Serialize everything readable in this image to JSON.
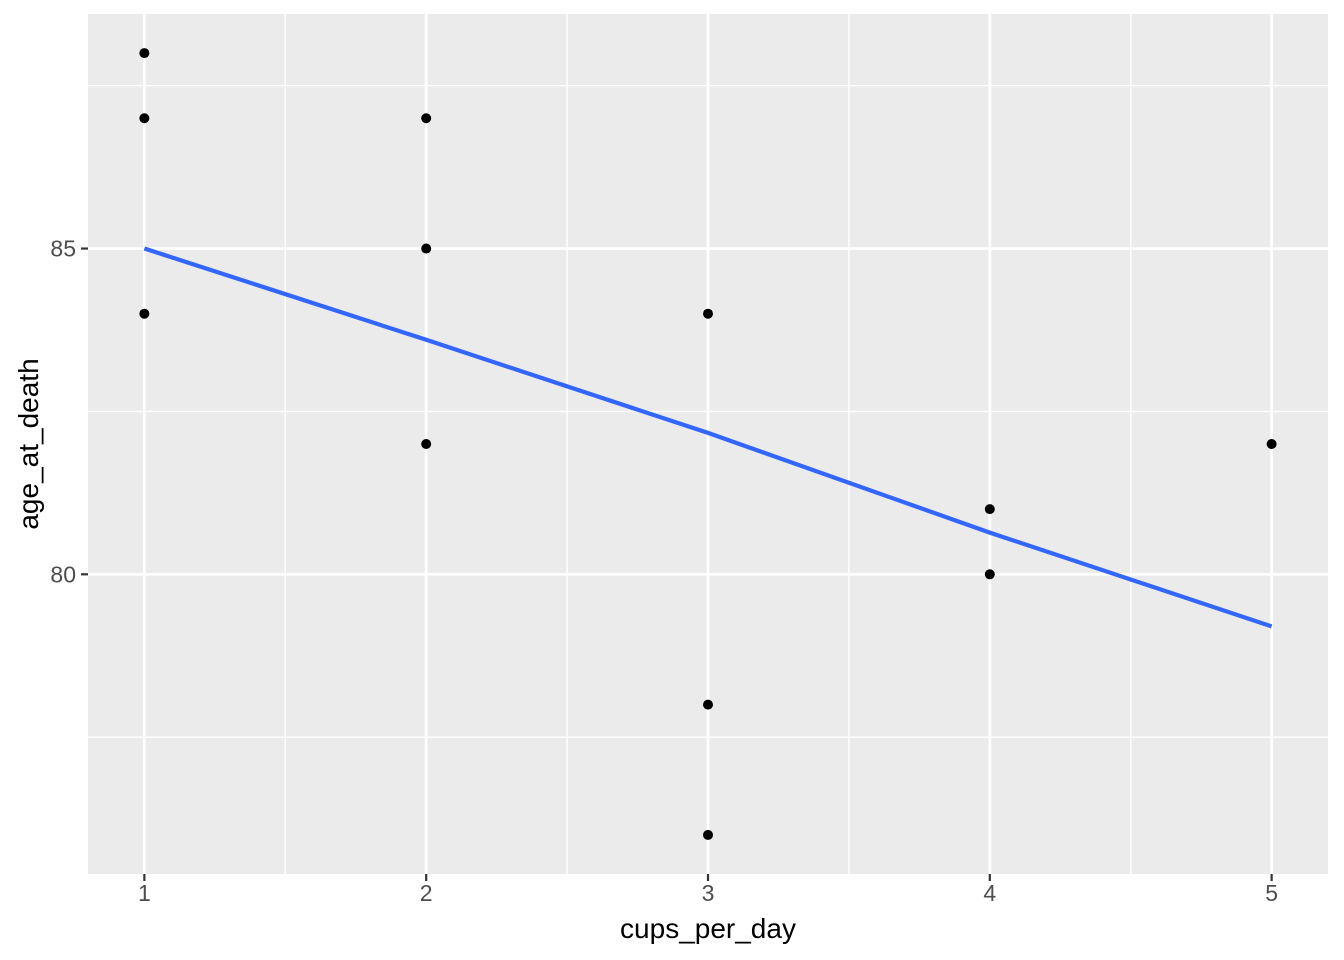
{
  "chart_data": {
    "type": "scatter",
    "title": "",
    "xlabel": "cups_per_day",
    "ylabel": "age_at_death",
    "xlim": [
      0.8,
      5.2
    ],
    "ylim": [
      75.4,
      88.6
    ],
    "x_breaks": [
      1,
      2,
      3,
      4,
      5
    ],
    "x_break_labels": [
      "1",
      "2",
      "3",
      "4",
      "5"
    ],
    "x_minor_breaks": [
      1.5,
      2.5,
      3.5,
      4.5
    ],
    "y_breaks": [
      80,
      85
    ],
    "y_break_labels": [
      "80",
      "85"
    ],
    "y_minor_breaks": [
      77.5,
      82.5,
      87.5
    ],
    "grid": true,
    "legend_position": "none",
    "points": [
      {
        "x": 1,
        "y": 88
      },
      {
        "x": 1,
        "y": 87
      },
      {
        "x": 1,
        "y": 84
      },
      {
        "x": 2,
        "y": 87
      },
      {
        "x": 2,
        "y": 85
      },
      {
        "x": 2,
        "y": 82
      },
      {
        "x": 3,
        "y": 84
      },
      {
        "x": 3,
        "y": 78
      },
      {
        "x": 3,
        "y": 76
      },
      {
        "x": 4,
        "y": 81
      },
      {
        "x": 4,
        "y": 80
      },
      {
        "x": 5,
        "y": 82
      }
    ],
    "trend_line": {
      "name": "linear-smooth",
      "x": [
        1,
        2,
        3,
        4,
        5
      ],
      "y": [
        85.0,
        83.6,
        82.17,
        80.64,
        79.2
      ]
    },
    "colors": {
      "panel_bg": "#EBEBEB",
      "grid_major": "#FFFFFF",
      "grid_minor": "#FFFFFF",
      "point": "#000000",
      "trend": "#3366FF",
      "tick_mark": "#333333",
      "tick_label": "#4D4D4D",
      "axis_title": "#000000",
      "plot_bg": "#FFFFFF"
    }
  }
}
